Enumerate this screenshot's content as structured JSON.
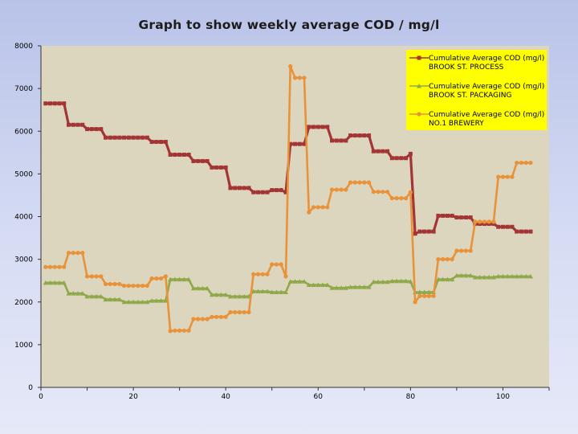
{
  "chart_data": {
    "type": "line",
    "title": "Graph to show weekly average COD / mg/l",
    "xlim": [
      0,
      110
    ],
    "ylim": [
      0,
      8000
    ],
    "xticks": [
      0,
      20,
      40,
      60,
      80,
      100
    ],
    "yticks": [
      0,
      1000,
      2000,
      3000,
      4000,
      5000,
      6000,
      7000,
      8000
    ],
    "legend_position": "top-right",
    "colors": {
      "plot_bg": "#ddd6bf",
      "legend_bg": "#ffff00"
    },
    "series": [
      {
        "name": "Cumulative Average COD (mg/l) BROOK ST. PROCESS",
        "legend_lines": [
          "Cumulative Average COD (mg/l)",
          "BROOK ST. PROCESS"
        ],
        "color": "#a33535",
        "marker": "square",
        "points": [
          [
            1,
            6650
          ],
          [
            2,
            6650
          ],
          [
            3,
            6650
          ],
          [
            4,
            6650
          ],
          [
            5,
            6650
          ],
          [
            6,
            6150
          ],
          [
            7,
            6150
          ],
          [
            8,
            6150
          ],
          [
            9,
            6150
          ],
          [
            10,
            6050
          ],
          [
            11,
            6050
          ],
          [
            12,
            6050
          ],
          [
            13,
            6050
          ],
          [
            14,
            5850
          ],
          [
            15,
            5850
          ],
          [
            16,
            5850
          ],
          [
            17,
            5850
          ],
          [
            18,
            5850
          ],
          [
            19,
            5850
          ],
          [
            20,
            5850
          ],
          [
            21,
            5850
          ],
          [
            22,
            5850
          ],
          [
            23,
            5850
          ],
          [
            24,
            5750
          ],
          [
            25,
            5750
          ],
          [
            26,
            5750
          ],
          [
            27,
            5750
          ],
          [
            28,
            5450
          ],
          [
            29,
            5450
          ],
          [
            30,
            5450
          ],
          [
            31,
            5450
          ],
          [
            32,
            5450
          ],
          [
            33,
            5300
          ],
          [
            34,
            5300
          ],
          [
            35,
            5300
          ],
          [
            36,
            5300
          ],
          [
            37,
            5150
          ],
          [
            38,
            5150
          ],
          [
            39,
            5150
          ],
          [
            40,
            5150
          ],
          [
            41,
            4670
          ],
          [
            42,
            4670
          ],
          [
            43,
            4670
          ],
          [
            44,
            4670
          ],
          [
            45,
            4670
          ],
          [
            46,
            4570
          ],
          [
            47,
            4570
          ],
          [
            48,
            4570
          ],
          [
            49,
            4570
          ],
          [
            50,
            4620
          ],
          [
            51,
            4620
          ],
          [
            52,
            4620
          ],
          [
            53,
            4570
          ],
          [
            54,
            5700
          ],
          [
            55,
            5700
          ],
          [
            56,
            5700
          ],
          [
            57,
            5700
          ],
          [
            58,
            6100
          ],
          [
            59,
            6100
          ],
          [
            60,
            6100
          ],
          [
            61,
            6100
          ],
          [
            62,
            6100
          ],
          [
            63,
            5780
          ],
          [
            64,
            5780
          ],
          [
            65,
            5780
          ],
          [
            66,
            5780
          ],
          [
            67,
            5900
          ],
          [
            68,
            5900
          ],
          [
            69,
            5900
          ],
          [
            70,
            5900
          ],
          [
            71,
            5900
          ],
          [
            72,
            5530
          ],
          [
            73,
            5530
          ],
          [
            74,
            5530
          ],
          [
            75,
            5530
          ],
          [
            76,
            5370
          ],
          [
            77,
            5370
          ],
          [
            78,
            5370
          ],
          [
            79,
            5370
          ],
          [
            80,
            5470
          ],
          [
            81,
            3600
          ],
          [
            82,
            3650
          ],
          [
            83,
            3650
          ],
          [
            84,
            3650
          ],
          [
            85,
            3650
          ],
          [
            86,
            4020
          ],
          [
            87,
            4020
          ],
          [
            88,
            4020
          ],
          [
            89,
            4020
          ],
          [
            90,
            3980
          ],
          [
            91,
            3980
          ],
          [
            92,
            3980
          ],
          [
            93,
            3980
          ],
          [
            94,
            3830
          ],
          [
            95,
            3830
          ],
          [
            96,
            3830
          ],
          [
            97,
            3830
          ],
          [
            98,
            3830
          ],
          [
            99,
            3760
          ],
          [
            100,
            3760
          ],
          [
            101,
            3760
          ],
          [
            102,
            3760
          ],
          [
            103,
            3650
          ],
          [
            104,
            3650
          ],
          [
            105,
            3650
          ],
          [
            106,
            3650
          ]
        ]
      },
      {
        "name": "Cumulative Average COD (mg/l) BROOK ST. PACKAGING",
        "legend_lines": [
          "Cumulative Average COD (mg/l)",
          "BROOK ST. PACKAGING"
        ],
        "color": "#8fa848",
        "marker": "triangle",
        "points": [
          [
            1,
            2450
          ],
          [
            2,
            2450
          ],
          [
            3,
            2450
          ],
          [
            4,
            2450
          ],
          [
            5,
            2450
          ],
          [
            6,
            2200
          ],
          [
            7,
            2200
          ],
          [
            8,
            2200
          ],
          [
            9,
            2200
          ],
          [
            10,
            2130
          ],
          [
            11,
            2130
          ],
          [
            12,
            2130
          ],
          [
            13,
            2130
          ],
          [
            14,
            2060
          ],
          [
            15,
            2060
          ],
          [
            16,
            2060
          ],
          [
            17,
            2060
          ],
          [
            18,
            2000
          ],
          [
            19,
            2000
          ],
          [
            20,
            2000
          ],
          [
            21,
            2000
          ],
          [
            22,
            2000
          ],
          [
            23,
            2000
          ],
          [
            24,
            2030
          ],
          [
            25,
            2030
          ],
          [
            26,
            2030
          ],
          [
            27,
            2030
          ],
          [
            28,
            2530
          ],
          [
            29,
            2530
          ],
          [
            30,
            2530
          ],
          [
            31,
            2530
          ],
          [
            32,
            2530
          ],
          [
            33,
            2320
          ],
          [
            34,
            2320
          ],
          [
            35,
            2320
          ],
          [
            36,
            2320
          ],
          [
            37,
            2170
          ],
          [
            38,
            2170
          ],
          [
            39,
            2170
          ],
          [
            40,
            2170
          ],
          [
            41,
            2130
          ],
          [
            42,
            2130
          ],
          [
            43,
            2130
          ],
          [
            44,
            2130
          ],
          [
            45,
            2130
          ],
          [
            46,
            2250
          ],
          [
            47,
            2250
          ],
          [
            48,
            2250
          ],
          [
            49,
            2250
          ],
          [
            50,
            2230
          ],
          [
            51,
            2230
          ],
          [
            52,
            2230
          ],
          [
            53,
            2230
          ],
          [
            54,
            2480
          ],
          [
            55,
            2480
          ],
          [
            56,
            2480
          ],
          [
            57,
            2480
          ],
          [
            58,
            2400
          ],
          [
            59,
            2400
          ],
          [
            60,
            2400
          ],
          [
            61,
            2400
          ],
          [
            62,
            2400
          ],
          [
            63,
            2330
          ],
          [
            64,
            2330
          ],
          [
            65,
            2330
          ],
          [
            66,
            2330
          ],
          [
            67,
            2350
          ],
          [
            68,
            2350
          ],
          [
            69,
            2350
          ],
          [
            70,
            2350
          ],
          [
            71,
            2350
          ],
          [
            72,
            2470
          ],
          [
            73,
            2470
          ],
          [
            74,
            2470
          ],
          [
            75,
            2470
          ],
          [
            76,
            2490
          ],
          [
            77,
            2490
          ],
          [
            78,
            2490
          ],
          [
            79,
            2490
          ],
          [
            80,
            2480
          ],
          [
            81,
            2230
          ],
          [
            82,
            2230
          ],
          [
            83,
            2230
          ],
          [
            84,
            2230
          ],
          [
            85,
            2230
          ],
          [
            86,
            2530
          ],
          [
            87,
            2530
          ],
          [
            88,
            2530
          ],
          [
            89,
            2530
          ],
          [
            90,
            2620
          ],
          [
            91,
            2620
          ],
          [
            92,
            2620
          ],
          [
            93,
            2620
          ],
          [
            94,
            2580
          ],
          [
            95,
            2580
          ],
          [
            96,
            2580
          ],
          [
            97,
            2580
          ],
          [
            98,
            2580
          ],
          [
            99,
            2600
          ],
          [
            100,
            2600
          ],
          [
            101,
            2600
          ],
          [
            102,
            2600
          ],
          [
            103,
            2600
          ],
          [
            104,
            2600
          ],
          [
            105,
            2600
          ],
          [
            106,
            2600
          ]
        ]
      },
      {
        "name": "Cumulative Average COD (mg/l) NO.1 BREWERY",
        "legend_lines": [
          "Cumulative Average COD (mg/l)",
          "NO.1 BREWERY"
        ],
        "color": "#e8923a",
        "marker": "circle",
        "points": [
          [
            1,
            2820
          ],
          [
            2,
            2820
          ],
          [
            3,
            2820
          ],
          [
            4,
            2820
          ],
          [
            5,
            2820
          ],
          [
            6,
            3150
          ],
          [
            7,
            3150
          ],
          [
            8,
            3150
          ],
          [
            9,
            3150
          ],
          [
            10,
            2600
          ],
          [
            11,
            2600
          ],
          [
            12,
            2600
          ],
          [
            13,
            2600
          ],
          [
            14,
            2420
          ],
          [
            15,
            2420
          ],
          [
            16,
            2420
          ],
          [
            17,
            2420
          ],
          [
            18,
            2380
          ],
          [
            19,
            2380
          ],
          [
            20,
            2380
          ],
          [
            21,
            2380
          ],
          [
            22,
            2380
          ],
          [
            23,
            2380
          ],
          [
            24,
            2550
          ],
          [
            25,
            2550
          ],
          [
            26,
            2550
          ],
          [
            27,
            2600
          ],
          [
            28,
            1320
          ],
          [
            29,
            1330
          ],
          [
            30,
            1330
          ],
          [
            31,
            1330
          ],
          [
            32,
            1330
          ],
          [
            33,
            1600
          ],
          [
            34,
            1600
          ],
          [
            35,
            1600
          ],
          [
            36,
            1600
          ],
          [
            37,
            1650
          ],
          [
            38,
            1650
          ],
          [
            39,
            1650
          ],
          [
            40,
            1650
          ],
          [
            41,
            1760
          ],
          [
            42,
            1760
          ],
          [
            43,
            1760
          ],
          [
            44,
            1760
          ],
          [
            45,
            1760
          ],
          [
            46,
            2650
          ],
          [
            47,
            2650
          ],
          [
            48,
            2650
          ],
          [
            49,
            2650
          ],
          [
            50,
            2880
          ],
          [
            51,
            2880
          ],
          [
            52,
            2880
          ],
          [
            53,
            2600
          ],
          [
            54,
            7520
          ],
          [
            55,
            7250
          ],
          [
            56,
            7250
          ],
          [
            57,
            7250
          ],
          [
            58,
            4100
          ],
          [
            59,
            4220
          ],
          [
            60,
            4220
          ],
          [
            61,
            4220
          ],
          [
            62,
            4220
          ],
          [
            63,
            4630
          ],
          [
            64,
            4630
          ],
          [
            65,
            4630
          ],
          [
            66,
            4630
          ],
          [
            67,
            4800
          ],
          [
            68,
            4800
          ],
          [
            69,
            4800
          ],
          [
            70,
            4800
          ],
          [
            71,
            4800
          ],
          [
            72,
            4580
          ],
          [
            73,
            4580
          ],
          [
            74,
            4580
          ],
          [
            75,
            4580
          ],
          [
            76,
            4430
          ],
          [
            77,
            4430
          ],
          [
            78,
            4430
          ],
          [
            79,
            4430
          ],
          [
            80,
            4570
          ],
          [
            81,
            2000
          ],
          [
            82,
            2140
          ],
          [
            83,
            2140
          ],
          [
            84,
            2140
          ],
          [
            85,
            2140
          ],
          [
            86,
            3000
          ],
          [
            87,
            3000
          ],
          [
            88,
            3000
          ],
          [
            89,
            3000
          ],
          [
            90,
            3200
          ],
          [
            91,
            3200
          ],
          [
            92,
            3200
          ],
          [
            93,
            3200
          ],
          [
            94,
            3880
          ],
          [
            95,
            3880
          ],
          [
            96,
            3880
          ],
          [
            97,
            3880
          ],
          [
            98,
            3880
          ],
          [
            99,
            4930
          ],
          [
            100,
            4930
          ],
          [
            101,
            4930
          ],
          [
            102,
            4930
          ],
          [
            103,
            5260
          ],
          [
            104,
            5260
          ],
          [
            105,
            5260
          ],
          [
            106,
            5260
          ]
        ]
      }
    ]
  }
}
